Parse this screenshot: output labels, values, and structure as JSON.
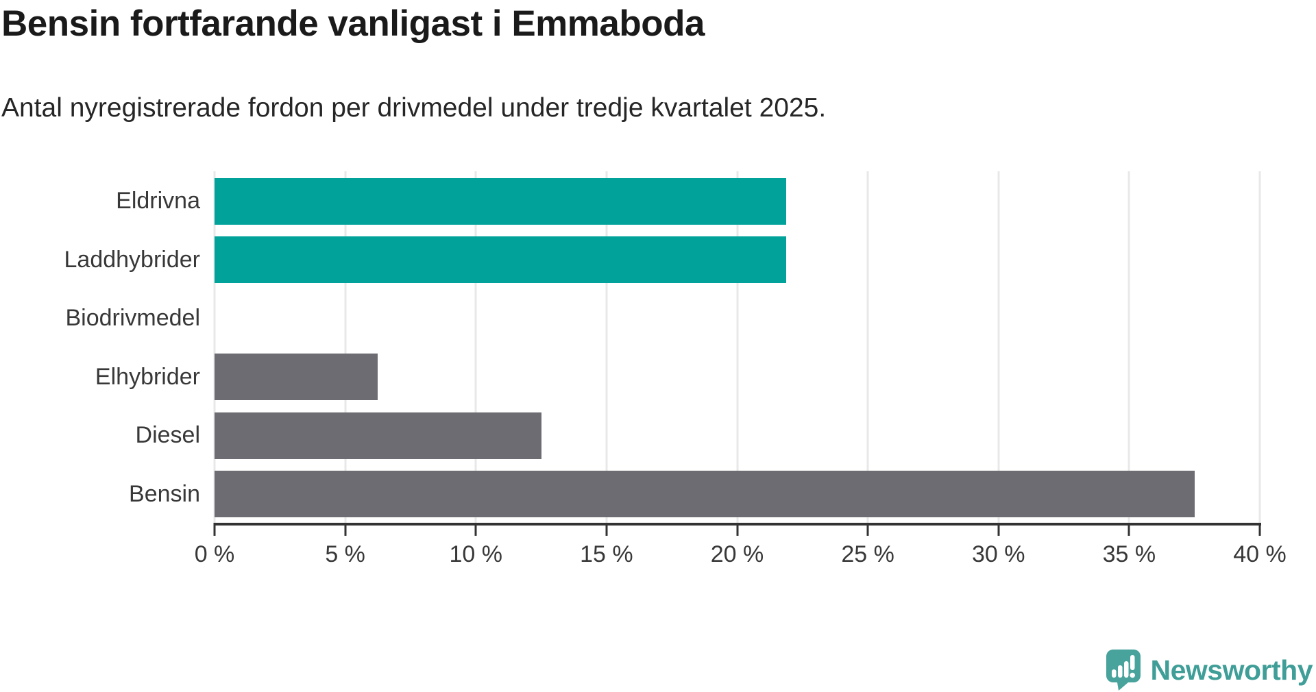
{
  "chart_data": {
    "type": "bar",
    "orientation": "horizontal",
    "title": "Bensin fortfarande vanligast i Emmaboda",
    "subtitle": "Antal nyregistrerade fordon per drivmedel under tredje kvartalet 2025.",
    "categories": [
      "Eldrivna",
      "Laddhybrider",
      "Biodrivmedel",
      "Elhybrider",
      "Diesel",
      "Bensin"
    ],
    "values": [
      21.875,
      21.875,
      0,
      6.25,
      12.5,
      37.5
    ],
    "bar_colors": [
      "#00a29a",
      "#00a29a",
      "#6c6c72",
      "#6c6c72",
      "#6c6c72",
      "#6c6c72"
    ],
    "highlight_color": "#00a29a",
    "default_color": "#6c6c72",
    "xlabel": "",
    "ylabel": "",
    "xlim": [
      0,
      40
    ],
    "x_tick_values": [
      0,
      5,
      10,
      15,
      20,
      25,
      30,
      35,
      40
    ],
    "x_tick_labels": [
      "0 %",
      "5 %",
      "10 %",
      "15 %",
      "20 %",
      "25 %",
      "30 %",
      "35 %",
      "40 %"
    ],
    "grid": "vertical-light-gray",
    "legend": "none"
  },
  "footer": {
    "brand": "Newsworthy",
    "brand_color": "#3f9e97",
    "icon_color": "#47a39c",
    "logo_icon": "newsworthy-speech-bubble-bar-chart-icon"
  }
}
